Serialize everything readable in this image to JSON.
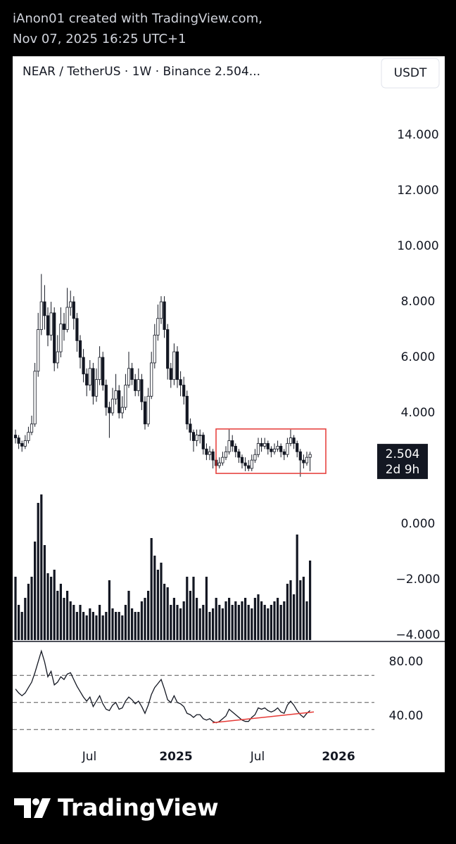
{
  "header": {
    "line1": "iAnon01 created with TradingView.com,",
    "line2": "Nov 07, 2025 16:25 UTC+1"
  },
  "chart_data": {
    "type": "candlestick",
    "title": "NEAR / TetherUS · 1W · Binance  2.504...",
    "currency": "USDT",
    "color": "#131722",
    "open": [
      3.2,
      3.1,
      2.9,
      2.8,
      3.0,
      3.3,
      3.6,
      5.5,
      7.0,
      8.0,
      7.5,
      6.8,
      7.6,
      5.8,
      6.2,
      7.2,
      7.0,
      7.8,
      8.0,
      7.4,
      6.6,
      6.0,
      5.4,
      5.0,
      5.6,
      4.6,
      5.2,
      6.0,
      5.0,
      4.2,
      4.0,
      4.5,
      4.8,
      4.0,
      4.2,
      5.0,
      5.6,
      5.2,
      4.8,
      5.2,
      4.4,
      3.6,
      4.6,
      5.8,
      6.8,
      7.4,
      8.0,
      7.0,
      5.6,
      5.2,
      6.2,
      5.2,
      5.0,
      4.6,
      3.6,
      3.3,
      3.0,
      3.2,
      3.2,
      2.7,
      2.5,
      2.6,
      2.3,
      2.1,
      2.2,
      2.4,
      2.6,
      3.0,
      2.8,
      2.6,
      2.4,
      2.2,
      2.1,
      2.0,
      2.3,
      2.5,
      2.9,
      2.8,
      2.9,
      2.7,
      2.6,
      2.7,
      2.8,
      2.6,
      2.5,
      2.9,
      3.1,
      2.9,
      2.6,
      2.3,
      2.2,
      2.4
    ],
    "high": [
      3.4,
      3.2,
      3.0,
      3.2,
      3.5,
      3.9,
      5.8,
      7.6,
      9.0,
      8.6,
      7.8,
      8.0,
      7.8,
      6.8,
      7.8,
      7.6,
      8.5,
      8.4,
      8.2,
      7.6,
      6.8,
      6.3,
      5.6,
      5.9,
      5.8,
      5.6,
      6.4,
      6.2,
      5.2,
      4.4,
      4.9,
      5.4,
      5.0,
      4.6,
      5.4,
      6.2,
      5.8,
      5.4,
      5.6,
      5.4,
      4.6,
      4.9,
      6.2,
      7.2,
      7.9,
      8.2,
      8.2,
      7.2,
      5.8,
      6.5,
      6.4,
      5.5,
      5.3,
      4.8,
      3.8,
      3.4,
      3.4,
      3.4,
      3.3,
      2.9,
      2.8,
      2.7,
      2.4,
      2.4,
      2.6,
      2.8,
      3.4,
      3.2,
      2.9,
      2.7,
      2.5,
      2.4,
      2.3,
      2.5,
      2.7,
      3.1,
      3.1,
      3.1,
      3.0,
      2.8,
      2.9,
      3.0,
      2.9,
      2.7,
      3.1,
      3.4,
      3.2,
      3.0,
      2.7,
      2.5,
      2.6,
      2.6
    ],
    "low": [
      2.9,
      2.7,
      2.6,
      2.7,
      2.9,
      3.2,
      3.5,
      5.3,
      6.8,
      7.0,
      6.4,
      6.6,
      5.5,
      5.6,
      6.0,
      6.6,
      6.9,
      7.5,
      7.0,
      6.2,
      5.6,
      5.1,
      4.6,
      4.8,
      4.3,
      4.4,
      5.0,
      4.8,
      3.9,
      3.1,
      3.9,
      4.3,
      3.8,
      3.8,
      4.1,
      4.9,
      5.0,
      4.6,
      4.6,
      4.1,
      3.4,
      3.5,
      4.5,
      5.6,
      6.6,
      7.2,
      6.7,
      5.2,
      4.9,
      5.0,
      4.9,
      4.6,
      4.3,
      3.4,
      3.0,
      2.6,
      2.8,
      2.9,
      2.5,
      2.3,
      2.3,
      2.0,
      1.9,
      2.0,
      2.1,
      2.3,
      2.5,
      2.6,
      2.4,
      2.2,
      2.0,
      1.9,
      1.9,
      1.9,
      2.2,
      2.4,
      2.6,
      2.7,
      2.5,
      2.4,
      2.5,
      2.6,
      2.4,
      2.3,
      2.4,
      2.8,
      2.7,
      2.4,
      1.7,
      2.0,
      2.1,
      1.9
    ],
    "close": [
      3.1,
      2.9,
      2.8,
      3.0,
      3.3,
      3.6,
      5.5,
      7.0,
      8.0,
      7.5,
      6.8,
      7.6,
      5.8,
      6.2,
      7.2,
      7.0,
      7.8,
      8.0,
      7.4,
      6.6,
      6.0,
      5.4,
      5.0,
      5.6,
      4.6,
      5.2,
      6.0,
      5.0,
      4.2,
      4.0,
      4.5,
      4.8,
      4.0,
      4.2,
      5.0,
      5.6,
      5.2,
      4.8,
      5.2,
      4.4,
      3.6,
      4.6,
      5.8,
      6.8,
      7.4,
      8.0,
      7.0,
      5.6,
      5.2,
      6.2,
      5.2,
      5.0,
      4.6,
      3.6,
      3.3,
      3.0,
      3.2,
      3.2,
      2.7,
      2.5,
      2.6,
      2.3,
      2.1,
      2.2,
      2.4,
      2.6,
      3.0,
      2.8,
      2.6,
      2.4,
      2.2,
      2.1,
      2.0,
      2.3,
      2.5,
      2.9,
      2.8,
      2.9,
      2.7,
      2.6,
      2.7,
      2.8,
      2.6,
      2.5,
      2.9,
      3.1,
      2.9,
      2.6,
      2.3,
      2.2,
      2.4,
      2.504
    ],
    "volume": [
      90,
      50,
      40,
      60,
      80,
      90,
      140,
      195,
      207,
      135,
      95,
      90,
      100,
      70,
      80,
      60,
      70,
      55,
      50,
      40,
      50,
      40,
      35,
      45,
      40,
      35,
      50,
      35,
      40,
      85,
      45,
      40,
      40,
      35,
      50,
      70,
      45,
      40,
      40,
      55,
      60,
      70,
      145,
      120,
      100,
      110,
      80,
      75,
      50,
      60,
      50,
      45,
      55,
      90,
      70,
      90,
      60,
      45,
      50,
      90,
      40,
      45,
      60,
      50,
      45,
      55,
      60,
      50,
      55,
      50,
      55,
      60,
      50,
      45,
      60,
      65,
      55,
      50,
      45,
      50,
      55,
      60,
      50,
      55,
      80,
      85,
      65,
      150,
      85,
      90,
      55,
      113
    ],
    "ylim": [
      -4.23,
      16.84
    ],
    "yticks": [
      {
        "value": 14,
        "label": "14.000"
      },
      {
        "value": 12,
        "label": "12.000"
      },
      {
        "value": 10,
        "label": "10.000"
      },
      {
        "value": 8,
        "label": "8.000"
      },
      {
        "value": 6,
        "label": "6.000"
      },
      {
        "value": 4,
        "label": "4.000"
      },
      {
        "value": 0,
        "label": "0.000"
      },
      {
        "value": -2,
        "label": "−2.000"
      },
      {
        "value": -4,
        "label": "−4.000"
      }
    ],
    "last_label": "2.504",
    "countdown": "2d 9h",
    "range_box": [
      1.82,
      3.42
    ],
    "time_labels": [
      "Jul",
      "2025",
      "Jul",
      "2026"
    ],
    "rsi": {
      "values": [
        60,
        57,
        55,
        57,
        61,
        65,
        72,
        80,
        88,
        80,
        69,
        73,
        63,
        65,
        69,
        67,
        71,
        72,
        67,
        62,
        58,
        54,
        51,
        54,
        47,
        51,
        55,
        49,
        45,
        44,
        48,
        50,
        45,
        46,
        51,
        54,
        52,
        49,
        51,
        47,
        42,
        48,
        56,
        61,
        64,
        67,
        60,
        52,
        50,
        55,
        50,
        49,
        47,
        42,
        41,
        39,
        41,
        41,
        38,
        37,
        38,
        36,
        35,
        36,
        38,
        40,
        45,
        43,
        41,
        39,
        37,
        36,
        36,
        39,
        41,
        46,
        45,
        46,
        44,
        43,
        44,
        46,
        43,
        42,
        48,
        51,
        48,
        44,
        41,
        39,
        42,
        44
      ],
      "ylim": [
        18.2,
        95.1
      ],
      "yticks": [
        {
          "value": 80,
          "label": "80.00"
        },
        {
          "value": 40,
          "label": "40.00"
        }
      ],
      "levels": [
        70,
        50,
        30
      ],
      "trendline": [
        35,
        43
      ]
    }
  },
  "footer": {
    "brand": "TradingView"
  }
}
